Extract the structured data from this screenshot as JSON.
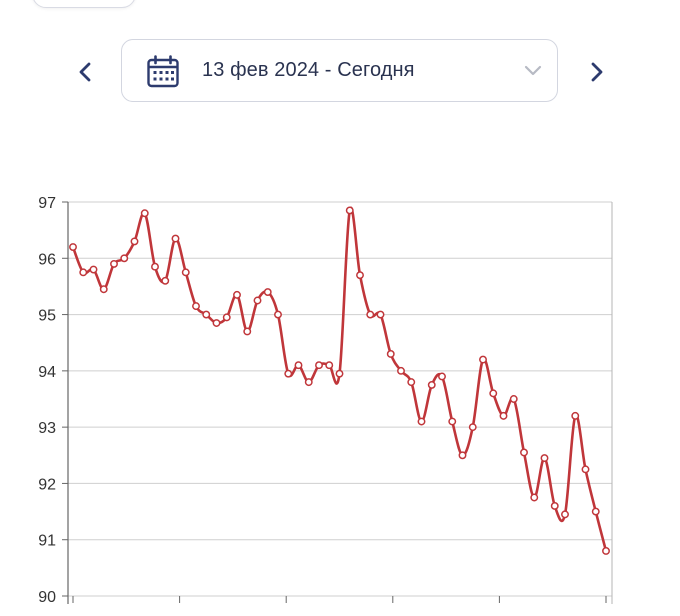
{
  "date_range": {
    "label": "13 фев 2024 - Сегодня"
  },
  "icons": {
    "prev": "chevron-left-icon",
    "next": "chevron-right-icon",
    "calendar": "calendar-icon",
    "dropdown": "chevron-down-icon"
  },
  "colors": {
    "accent": "#2d3b6e",
    "series": "#c0363a",
    "grid": "#cfcfcf",
    "axis": "#666666"
  },
  "chart_data": {
    "type": "line",
    "title": "",
    "xlabel": "",
    "ylabel": "",
    "ylim": [
      90,
      97
    ],
    "yticks": [
      90,
      91,
      92,
      93,
      94,
      95,
      96,
      97
    ],
    "grid": true,
    "x_tick_labels_visible": false,
    "series": [
      {
        "values": [
          96.2,
          95.75,
          95.8,
          95.45,
          95.9,
          96.0,
          96.3,
          96.8,
          95.85,
          95.6,
          96.35,
          95.75,
          95.15,
          95.0,
          94.85,
          94.95,
          95.35,
          94.7,
          95.25,
          95.4,
          95.0,
          93.95,
          94.1,
          93.8,
          94.1,
          94.1,
          93.95,
          96.85,
          95.7,
          95.0,
          95.0,
          94.3,
          94.0,
          93.8,
          93.1,
          93.75,
          93.9,
          93.1,
          92.5,
          93.0,
          94.2,
          93.6,
          93.2,
          93.5,
          92.55,
          91.75,
          92.45,
          91.6,
          91.45,
          93.2,
          92.25,
          91.5,
          90.8
        ]
      }
    ]
  }
}
